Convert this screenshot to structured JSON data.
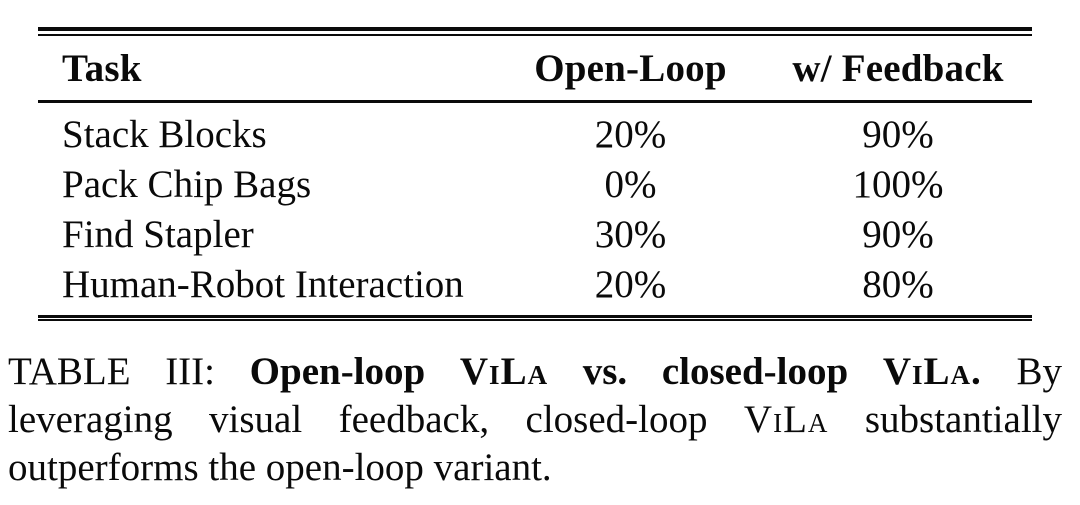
{
  "page": {
    "background": "#ffffff",
    "text_color": "#0a0a0a",
    "rule_color": "#0a0a0a"
  },
  "table": {
    "columns": [
      {
        "label": "Task"
      },
      {
        "label": "Open-Loop"
      },
      {
        "label": "w/ Feedback"
      }
    ],
    "rows": [
      {
        "task": "Stack Blocks",
        "open_loop": "20%",
        "w_feedback": "90%"
      },
      {
        "task": "Pack Chip Bags",
        "open_loop": "0%",
        "w_feedback": "100%"
      },
      {
        "task": "Find Stapler",
        "open_loop": "30%",
        "w_feedback": "90%"
      },
      {
        "task": "Human-Robot Interaction",
        "open_loop": "20%",
        "w_feedback": "80%"
      }
    ]
  },
  "caption": {
    "lines": [
      [
        {
          "t": "TABLE III: ",
          "b": 0,
          "sc": 0
        },
        {
          "t": "Open-loop ",
          "b": 1,
          "sc": 0
        },
        {
          "t": "ViLa",
          "b": 1,
          "sc": 1
        },
        {
          "t": " vs. closed-loop ",
          "b": 1,
          "sc": 0
        },
        {
          "t": "ViLa.",
          "b": 1,
          "sc": 1
        },
        {
          "t": " By",
          "b": 0,
          "sc": 0
        }
      ],
      [
        {
          "t": "leveraging visual feedback, closed-loop ",
          "b": 0,
          "sc": 0
        },
        {
          "t": "ViLa",
          "b": 0,
          "sc": 1
        },
        {
          "t": " substantially",
          "b": 0,
          "sc": 0
        }
      ],
      [
        {
          "t": "outperforms the open-loop variant.",
          "b": 0,
          "sc": 0
        }
      ]
    ]
  }
}
